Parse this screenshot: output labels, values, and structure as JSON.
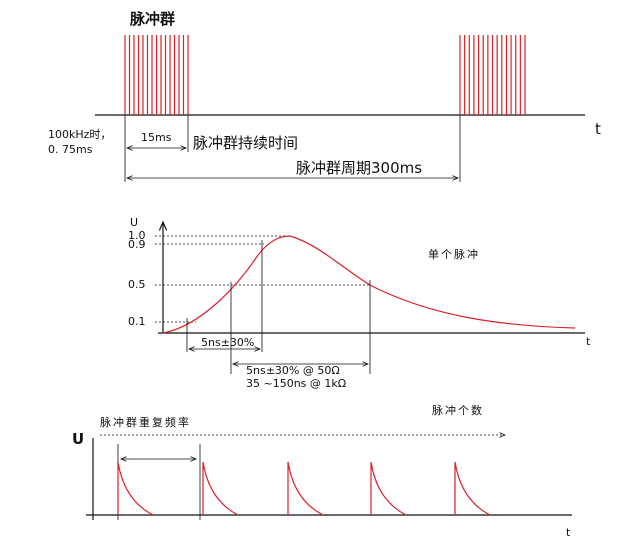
{
  "burst_timing": {
    "burst_label": "脉冲群",
    "t_axis": "t",
    "freq_note_line1": "100kHz时，",
    "freq_note_line2": "0. 75ms",
    "duration_value": "15ms",
    "duration_label": "脉冲群持续时间",
    "period_label": "脉冲群周期300ms"
  },
  "single_pulse": {
    "u_axis": "U",
    "level_labels": [
      "1.0",
      "0.9",
      "0.5",
      "0.1"
    ],
    "title": "单个脉冲",
    "rise_time": "5ns±30%",
    "width_50ohm": "5ns±30% @ 50Ω",
    "width_1kohm": "35 ~150ns @ 1kΩ",
    "t_axis": "t"
  },
  "pulse_train": {
    "count_label": "脉冲个数",
    "repetition_label": "脉冲群重复频率",
    "u_axis": "U",
    "t_axis": "t"
  }
}
